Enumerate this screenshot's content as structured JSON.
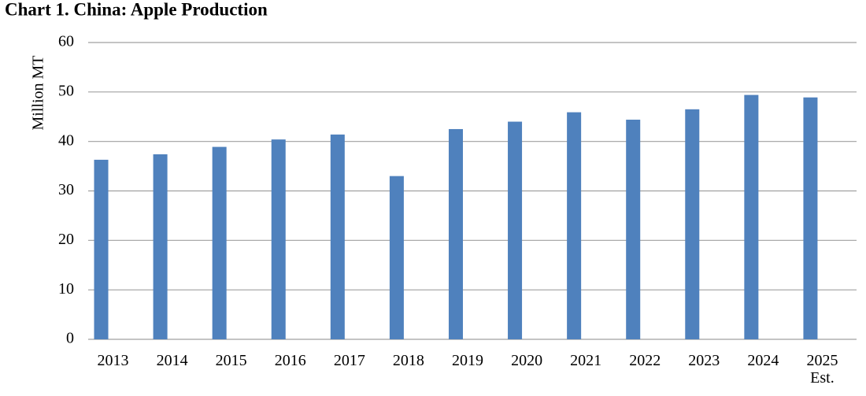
{
  "chart_data": {
    "type": "bar",
    "title": "Chart 1. China: Apple Production",
    "y_label": "Million MT",
    "categories": [
      "2013",
      "2014",
      "2015",
      "2016",
      "2017",
      "2018",
      "2019",
      "2020",
      "2021",
      "2022",
      "2023",
      "2024",
      "2025 Est."
    ],
    "values": [
      36.3,
      37.4,
      38.9,
      40.4,
      41.4,
      33.0,
      42.5,
      44.0,
      45.9,
      44.4,
      46.5,
      49.4,
      48.9
    ],
    "color": "#4f81bd",
    "ylim": [
      0,
      60
    ],
    "yticks": [
      0,
      10,
      20,
      30,
      40,
      50,
      60
    ],
    "grid": true
  }
}
